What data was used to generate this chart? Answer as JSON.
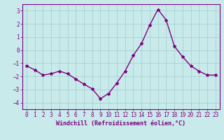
{
  "x": [
    0,
    1,
    2,
    3,
    4,
    5,
    6,
    7,
    8,
    9,
    10,
    11,
    12,
    13,
    14,
    15,
    16,
    17,
    18,
    19,
    20,
    21,
    22,
    23
  ],
  "y": [
    -1.2,
    -1.5,
    -1.9,
    -1.8,
    -1.6,
    -1.8,
    -2.2,
    -2.6,
    -2.95,
    -3.7,
    -3.3,
    -2.5,
    -1.6,
    -0.4,
    0.5,
    1.9,
    3.1,
    2.3,
    0.3,
    -0.5,
    -1.2,
    -1.6,
    -1.9,
    -1.9
  ],
  "line_color": "#800080",
  "marker": "*",
  "bg_color": "#c8eaea",
  "grid_color": "#a0cccc",
  "xlabel": "Windchill (Refroidissement éolien,°C)",
  "xlim": [
    -0.5,
    23.5
  ],
  "ylim": [
    -4.5,
    3.5
  ],
  "yticks": [
    -4,
    -3,
    -2,
    -1,
    0,
    1,
    2,
    3
  ],
  "xticks": [
    0,
    1,
    2,
    3,
    4,
    5,
    6,
    7,
    8,
    9,
    10,
    11,
    12,
    13,
    14,
    15,
    16,
    17,
    18,
    19,
    20,
    21,
    22,
    23
  ],
  "line_width": 1.0,
  "marker_size": 3,
  "axis_color": "#800080",
  "tick_color": "#800080",
  "label_color": "#800080",
  "label_fontsize": 6,
  "tick_fontsize": 5.5
}
